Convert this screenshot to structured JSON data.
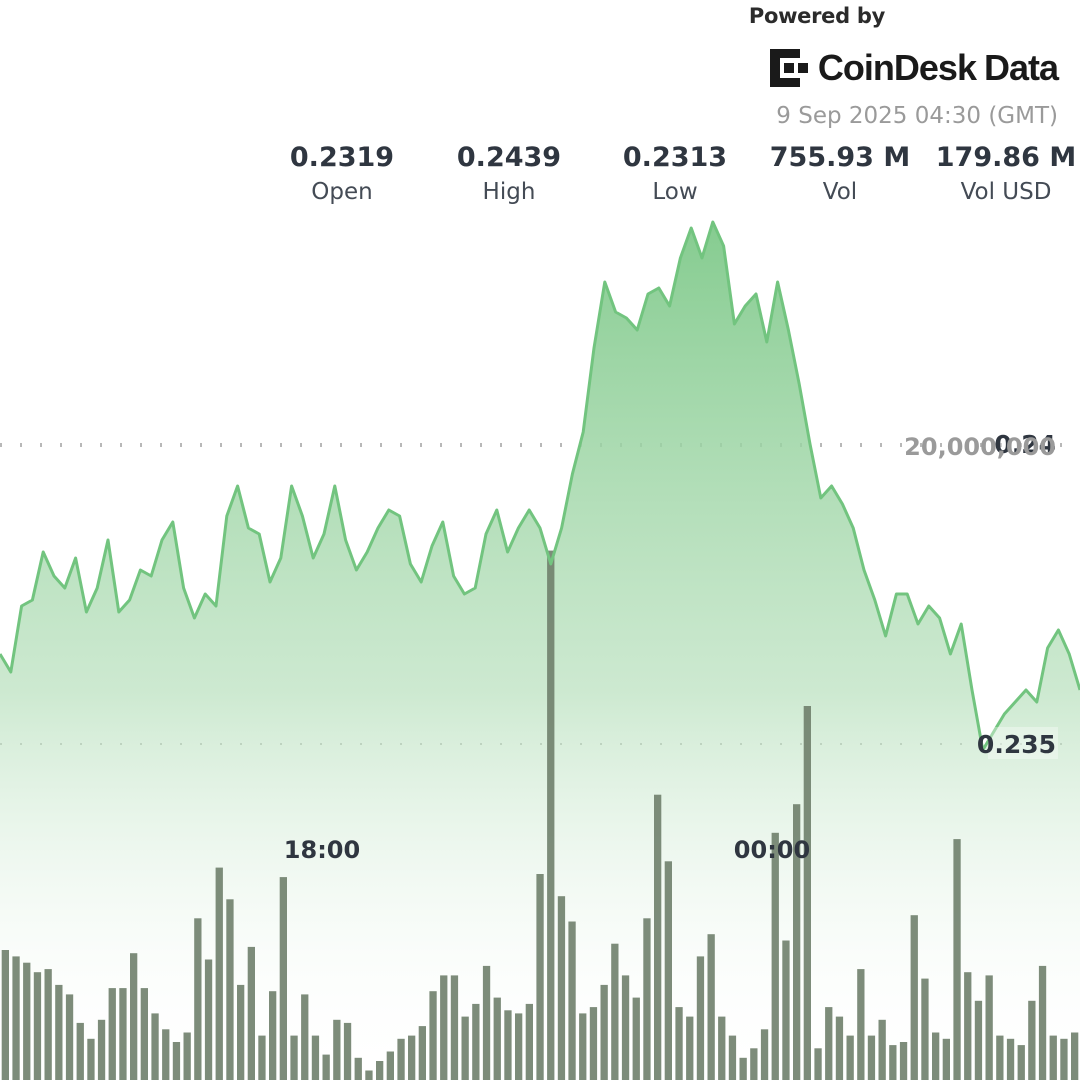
{
  "header": {
    "powered_by": "Powered by",
    "brand_name_1": "CoinDesk",
    "brand_name_2": "Data",
    "timestamp": "9 Sep 2025 04:30 (GMT)"
  },
  "stats": [
    {
      "value": "0.2319",
      "label": "Open"
    },
    {
      "value": "0.2439",
      "label": "High"
    },
    {
      "value": "0.2313",
      "label": "Low"
    },
    {
      "value": "755.93 M",
      "label": "Vol"
    },
    {
      "value": "179.86 M",
      "label": "Vol USD"
    }
  ],
  "colors": {
    "line": "#72c47f",
    "area_top": "#7fc98a",
    "volume_bar": "#6f7f6b",
    "grid": "#b8b8b8",
    "axis_text": "#2f3640",
    "volume_axis_text": "#9a9a9a"
  },
  "chart_data": {
    "type": "area",
    "price_axis": {
      "ticks": [
        0.24,
        0.235
      ],
      "tick_labels": [
        "0.24",
        "0.235"
      ],
      "range": [
        0.2294,
        0.2434
      ]
    },
    "volume_axis": {
      "ticks": [
        20000000
      ],
      "tick_labels": [
        "20,000,000"
      ],
      "range": [
        0,
        26500000
      ]
    },
    "time_labels": [
      "18:00",
      "00:00"
    ],
    "price": [
      0.2365,
      0.2362,
      0.2373,
      0.2374,
      0.2382,
      0.2378,
      0.2376,
      0.2381,
      0.2372,
      0.2376,
      0.2384,
      0.2372,
      0.2374,
      0.2379,
      0.2378,
      0.2384,
      0.2387,
      0.2376,
      0.2371,
      0.2375,
      0.2373,
      0.2388,
      0.2393,
      0.2386,
      0.2385,
      0.2377,
      0.2381,
      0.2393,
      0.2388,
      0.2381,
      0.2385,
      0.2393,
      0.2384,
      0.2379,
      0.2382,
      0.2386,
      0.2389,
      0.2388,
      0.238,
      0.2377,
      0.2383,
      0.2387,
      0.2378,
      0.2375,
      0.2376,
      0.2385,
      0.2389,
      0.2382,
      0.2386,
      0.2389,
      0.2386,
      0.238,
      0.2386,
      0.2395,
      0.2402,
      0.2416,
      0.2427,
      0.2422,
      0.2421,
      0.2419,
      0.2425,
      0.2426,
      0.2423,
      0.2431,
      0.2436,
      0.2431,
      0.2437,
      0.2433,
      0.242,
      0.2423,
      0.2425,
      0.2417,
      0.2427,
      0.2419,
      0.241,
      0.24,
      0.2391,
      0.2393,
      0.239,
      0.2386,
      0.2379,
      0.2374,
      0.2368,
      0.2375,
      0.2375,
      0.237,
      0.2373,
      0.2371,
      0.2365,
      0.237,
      0.2359,
      0.2349,
      0.2352,
      0.2355,
      0.2357,
      0.2359,
      0.2357,
      0.2366,
      0.2369,
      0.2365,
      0.2359
    ],
    "volume": [
      4100000,
      3900000,
      3700000,
      3400000,
      3500000,
      3000000,
      2700000,
      1800000,
      1300000,
      1900000,
      2900000,
      2900000,
      4000000,
      2900000,
      2100000,
      1600000,
      1200000,
      1500000,
      5100000,
      3800000,
      6700000,
      5700000,
      3000000,
      4200000,
      1400000,
      2800000,
      6400000,
      1400000,
      2700000,
      1400000,
      800000,
      1900000,
      1800000,
      700000,
      300000,
      600000,
      900000,
      1300000,
      1400000,
      1700000,
      2800000,
      3300000,
      3300000,
      2000000,
      2400000,
      3600000,
      2600000,
      2200000,
      2100000,
      2400000,
      6500000,
      16700000,
      5800000,
      5000000,
      2100000,
      2300000,
      3000000,
      4300000,
      3300000,
      2600000,
      5100000,
      9000000,
      6900000,
      2300000,
      2000000,
      3900000,
      4600000,
      2000000,
      1400000,
      700000,
      1000000,
      1600000,
      7800000,
      4400000,
      8700000,
      11800000,
      1000000,
      2300000,
      2000000,
      1400000,
      3500000,
      1400000,
      1900000,
      1100000,
      1200000,
      5200000,
      3200000,
      1500000,
      1300000,
      7600000,
      3400000,
      2500000,
      3300000,
      1400000,
      1300000,
      1100000,
      2500000,
      3600000,
      1400000,
      1300000,
      1500000
    ]
  }
}
